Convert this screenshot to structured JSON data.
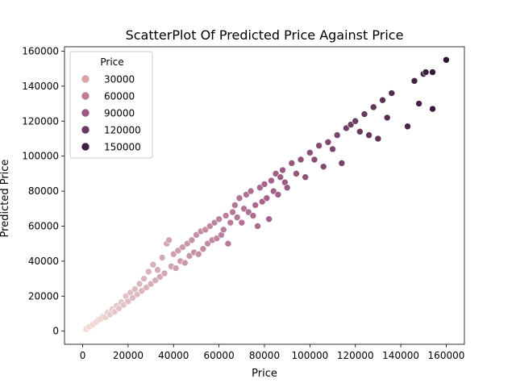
{
  "chart_data": {
    "type": "scatter",
    "title": "ScatterPlot Of Predicted Price Against Price",
    "xlabel": "Price",
    "ylabel": "Predicted Price",
    "xlim": [
      -8000,
      168000
    ],
    "ylim": [
      -7500,
      162500
    ],
    "xticks": [
      0,
      20000,
      40000,
      60000,
      80000,
      100000,
      120000,
      140000,
      160000
    ],
    "yticks": [
      0,
      20000,
      40000,
      60000,
      80000,
      100000,
      120000,
      140000,
      160000
    ],
    "xtick_labels": [
      "0",
      "20000",
      "40000",
      "60000",
      "80000",
      "100000",
      "120000",
      "140000",
      "160000"
    ],
    "ytick_labels": [
      "0",
      "20000",
      "40000",
      "60000",
      "80000",
      "100000",
      "120000",
      "140000",
      "160000"
    ],
    "grid": false,
    "legend": {
      "title": "Price",
      "placement": "top-left",
      "entries": [
        {
          "label": "30000",
          "value": 30000,
          "color": "#d8a3a6"
        },
        {
          "label": "60000",
          "value": 60000,
          "color": "#bf7b92"
        },
        {
          "label": "90000",
          "value": 90000,
          "color": "#9a5882"
        },
        {
          "label": "120000",
          "value": 120000,
          "color": "#6c3a67"
        },
        {
          "label": "150000",
          "value": 150000,
          "color": "#3d1f45"
        }
      ]
    },
    "hue_colormap": {
      "low": "#f4dcd6",
      "mid": "#a8648a",
      "high": "#2e1534"
    },
    "hue_range": [
      0,
      160000
    ],
    "trend": "Predicted price increases roughly linearly with price; dense cluster below 60000, sparser above.",
    "points": [
      {
        "x": 1500,
        "y": 1200
      },
      {
        "x": 3000,
        "y": 2500
      },
      {
        "x": 4500,
        "y": 3800
      },
      {
        "x": 6000,
        "y": 5200
      },
      {
        "x": 7000,
        "y": 6500
      },
      {
        "x": 8000,
        "y": 7000
      },
      {
        "x": 9000,
        "y": 8200
      },
      {
        "x": 10000,
        "y": 8000
      },
      {
        "x": 11000,
        "y": 10500
      },
      {
        "x": 12000,
        "y": 9500
      },
      {
        "x": 13000,
        "y": 12500
      },
      {
        "x": 14000,
        "y": 11000
      },
      {
        "x": 15000,
        "y": 14500
      },
      {
        "x": 16000,
        "y": 13000
      },
      {
        "x": 17000,
        "y": 16500
      },
      {
        "x": 18000,
        "y": 15000
      },
      {
        "x": 19000,
        "y": 20000
      },
      {
        "x": 20000,
        "y": 17000
      },
      {
        "x": 21000,
        "y": 22000
      },
      {
        "x": 22000,
        "y": 19000
      },
      {
        "x": 23000,
        "y": 24000
      },
      {
        "x": 24000,
        "y": 21000
      },
      {
        "x": 25000,
        "y": 27000
      },
      {
        "x": 26000,
        "y": 23000
      },
      {
        "x": 27000,
        "y": 30000
      },
      {
        "x": 28000,
        "y": 25000
      },
      {
        "x": 29000,
        "y": 34000
      },
      {
        "x": 30000,
        "y": 27000
      },
      {
        "x": 31000,
        "y": 38000
      },
      {
        "x": 32000,
        "y": 29000
      },
      {
        "x": 33000,
        "y": 35000
      },
      {
        "x": 34000,
        "y": 31000
      },
      {
        "x": 35000,
        "y": 42000
      },
      {
        "x": 36000,
        "y": 33000
      },
      {
        "x": 37000,
        "y": 50000
      },
      {
        "x": 38000,
        "y": 52000
      },
      {
        "x": 39000,
        "y": 37000
      },
      {
        "x": 40000,
        "y": 44000
      },
      {
        "x": 41000,
        "y": 36000
      },
      {
        "x": 42000,
        "y": 46000
      },
      {
        "x": 43000,
        "y": 40000
      },
      {
        "x": 44000,
        "y": 48000
      },
      {
        "x": 45000,
        "y": 39000
      },
      {
        "x": 46000,
        "y": 50000
      },
      {
        "x": 47000,
        "y": 43000
      },
      {
        "x": 48000,
        "y": 52000
      },
      {
        "x": 49000,
        "y": 45000
      },
      {
        "x": 50000,
        "y": 55000
      },
      {
        "x": 51000,
        "y": 44000
      },
      {
        "x": 52000,
        "y": 57000
      },
      {
        "x": 53000,
        "y": 47000
      },
      {
        "x": 54000,
        "y": 58000
      },
      {
        "x": 55000,
        "y": 50000
      },
      {
        "x": 56000,
        "y": 60000
      },
      {
        "x": 57000,
        "y": 52000
      },
      {
        "x": 58000,
        "y": 62000
      },
      {
        "x": 59000,
        "y": 53000
      },
      {
        "x": 60000,
        "y": 64000
      },
      {
        "x": 61000,
        "y": 55000
      },
      {
        "x": 62000,
        "y": 58000
      },
      {
        "x": 63000,
        "y": 66000
      },
      {
        "x": 64000,
        "y": 50000
      },
      {
        "x": 65000,
        "y": 62000
      },
      {
        "x": 66000,
        "y": 68000
      },
      {
        "x": 67000,
        "y": 72000
      },
      {
        "x": 68000,
        "y": 65000
      },
      {
        "x": 69000,
        "y": 76000
      },
      {
        "x": 70000,
        "y": 62000
      },
      {
        "x": 71000,
        "y": 70000
      },
      {
        "x": 72000,
        "y": 78000
      },
      {
        "x": 73000,
        "y": 68000
      },
      {
        "x": 74000,
        "y": 80000
      },
      {
        "x": 75000,
        "y": 66000
      },
      {
        "x": 76000,
        "y": 72000
      },
      {
        "x": 77000,
        "y": 60000
      },
      {
        "x": 78000,
        "y": 82000
      },
      {
        "x": 79000,
        "y": 74000
      },
      {
        "x": 80000,
        "y": 84000
      },
      {
        "x": 81000,
        "y": 76000
      },
      {
        "x": 82000,
        "y": 64000
      },
      {
        "x": 83000,
        "y": 86000
      },
      {
        "x": 84000,
        "y": 80000
      },
      {
        "x": 85000,
        "y": 90000
      },
      {
        "x": 86000,
        "y": 78000
      },
      {
        "x": 87000,
        "y": 88000
      },
      {
        "x": 88000,
        "y": 92000
      },
      {
        "x": 89000,
        "y": 85000
      },
      {
        "x": 90000,
        "y": 82000
      },
      {
        "x": 92000,
        "y": 96000
      },
      {
        "x": 94000,
        "y": 90000
      },
      {
        "x": 96000,
        "y": 98000
      },
      {
        "x": 98000,
        "y": 88000
      },
      {
        "x": 100000,
        "y": 102000
      },
      {
        "x": 102000,
        "y": 98000
      },
      {
        "x": 104000,
        "y": 106000
      },
      {
        "x": 106000,
        "y": 94000
      },
      {
        "x": 108000,
        "y": 108000
      },
      {
        "x": 110000,
        "y": 104000
      },
      {
        "x": 112000,
        "y": 112000
      },
      {
        "x": 114000,
        "y": 96000
      },
      {
        "x": 116000,
        "y": 116000
      },
      {
        "x": 118000,
        "y": 118000
      },
      {
        "x": 120000,
        "y": 120000
      },
      {
        "x": 122000,
        "y": 114000
      },
      {
        "x": 124000,
        "y": 124000
      },
      {
        "x": 126000,
        "y": 112000
      },
      {
        "x": 128000,
        "y": 128000
      },
      {
        "x": 130000,
        "y": 110000
      },
      {
        "x": 132000,
        "y": 132000
      },
      {
        "x": 134000,
        "y": 122000
      },
      {
        "x": 136000,
        "y": 136000
      },
      {
        "x": 143000,
        "y": 117000
      },
      {
        "x": 146000,
        "y": 143000
      },
      {
        "x": 148000,
        "y": 130000
      },
      {
        "x": 150000,
        "y": 147000
      },
      {
        "x": 151000,
        "y": 148000
      },
      {
        "x": 154000,
        "y": 148000
      },
      {
        "x": 154000,
        "y": 127000
      },
      {
        "x": 160000,
        "y": 155000
      }
    ]
  }
}
